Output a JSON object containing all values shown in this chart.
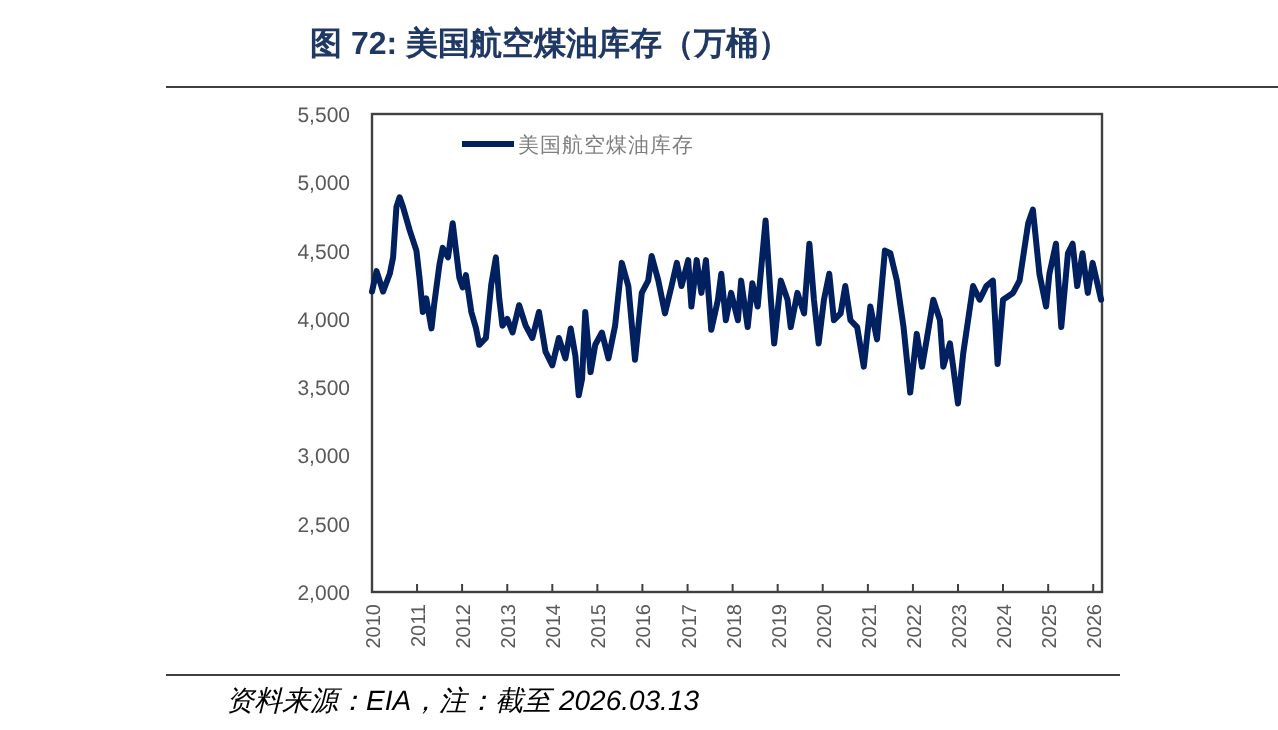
{
  "chart_data": {
    "type": "line",
    "title": "图 72: 美国航空煤油库存（万桶）",
    "annotations": [
      "资料来源：EIA，注：截至 2026.03.13"
    ],
    "xlim": [
      "2010-01-01",
      "2026-03-13"
    ],
    "xticks": [
      "2010",
      "2011",
      "2012",
      "2013",
      "2014",
      "2015",
      "2016",
      "2017",
      "2018",
      "2019",
      "2020",
      "2021",
      "2022",
      "2023",
      "2024",
      "2025",
      "2026"
    ],
    "ylim": [
      2000,
      5500
    ],
    "yticks": [
      {
        "value": 2000,
        "label": "2,000"
      },
      {
        "value": 2500,
        "label": "2,500"
      },
      {
        "value": 3000,
        "label": "3,000"
      },
      {
        "value": 3500,
        "label": "3,500"
      },
      {
        "value": 4000,
        "label": "4,000"
      },
      {
        "value": 4500,
        "label": "4,500"
      },
      {
        "value": 5000,
        "label": "5,000"
      },
      {
        "value": 5500,
        "label": "5,500"
      }
    ],
    "grid": false,
    "legend": "top left",
    "marker": "none",
    "line_style": "solid",
    "x": [
      "2010-01-01",
      "2010-02-07",
      "2010-04-01",
      "2010-05-25",
      "2010-06-21",
      "2010-07-18",
      "2010-08-13",
      "2010-09-09",
      "2010-11-02",
      "2010-12-27",
      "2011-01-21",
      "2011-02-17",
      "2011-03-16",
      "2011-04-28",
      "2011-05-19",
      "2011-07-02",
      "2011-07-28",
      "2011-09-09",
      "2011-10-17",
      "2011-11-13",
      "2011-12-10",
      "2012-01-06",
      "2012-02-01",
      "2012-03-16",
      "2012-04-23",
      "2012-05-19",
      "2012-07-12",
      "2012-08-24",
      "2012-10-01",
      "2012-10-28",
      "2012-11-23",
      "2013-01-01",
      "2013-02-13",
      "2013-04-07",
      "2013-05-30",
      "2013-07-23",
      "2013-09-15",
      "2013-11-07",
      "2014-01-01",
      "2014-02-23",
      "2014-04-17",
      "2014-05-30",
      "2014-07-07",
      "2014-08-03",
      "2014-08-30",
      "2014-09-25",
      "2014-11-07",
      "2014-12-15",
      "2015-02-07",
      "2015-04-01",
      "2015-05-25",
      "2015-07-18",
      "2015-09-09",
      "2015-11-02",
      "2015-12-27",
      "2016-02-17",
      "2016-03-16",
      "2016-05-09",
      "2016-07-02",
      "2016-08-24",
      "2016-10-06",
      "2016-11-13",
      "2017-01-06",
      "2017-02-01",
      "2017-03-16",
      "2017-04-23",
      "2017-05-30",
      "2017-07-12",
      "2017-09-04",
      "2017-10-01",
      "2017-11-07",
      "2017-12-20",
      "2018-02-13",
      "2018-03-11",
      "2018-05-03",
      "2018-06-10",
      "2018-07-23",
      "2018-09-25",
      "2018-11-07",
      "2018-12-04",
      "2019-01-27",
      "2019-03-22",
      "2019-04-17",
      "2019-06-10",
      "2019-08-03",
      "2019-09-15",
      "2019-10-22",
      "2019-11-29",
      "2020-01-11",
      "2020-02-23",
      "2020-04-01",
      "2020-05-25",
      "2020-07-02",
      "2020-08-13",
      "2020-10-06",
      "2020-11-29",
      "2021-01-21",
      "2021-03-16",
      "2021-05-19",
      "2021-07-02",
      "2021-08-24",
      "2021-10-17",
      "2021-12-10",
      "2022-02-01",
      "2022-03-16",
      "2022-04-23",
      "2022-06-15",
      "2022-08-08",
      "2022-09-04",
      "2022-10-28",
      "2022-11-23",
      "2023-01-01",
      "2023-02-13",
      "2023-05-03",
      "2023-06-26",
      "2023-08-19",
      "2023-10-11",
      "2023-11-18",
      "2024-01-01",
      "2024-03-22",
      "2024-05-14",
      "2024-07-23",
      "2024-08-30",
      "2024-10-22",
      "2024-12-15",
      "2025-01-11",
      "2025-03-05",
      "2025-04-17",
      "2025-06-10",
      "2025-07-18",
      "2025-08-24",
      "2025-10-06",
      "2025-11-18",
      "2025-12-27",
      "2026-03-06"
    ],
    "series": [
      {
        "name": "美国航空煤油库存",
        "color": "#002060",
        "values": [
          4200,
          4350,
          4200,
          4330,
          4450,
          4820,
          4890,
          4820,
          4650,
          4500,
          4300,
          4050,
          4150,
          3930,
          4100,
          4400,
          4520,
          4450,
          4700,
          4500,
          4300,
          4230,
          4320,
          4050,
          3930,
          3810,
          3860,
          4250,
          4450,
          4150,
          3950,
          4000,
          3900,
          4100,
          3950,
          3860,
          4050,
          3760,
          3660,
          3860,
          3710,
          3930,
          3730,
          3440,
          3560,
          4050,
          3610,
          3810,
          3900,
          3710,
          3950,
          4410,
          4240,
          3700,
          4190,
          4280,
          4460,
          4280,
          4040,
          4240,
          4410,
          4240,
          4430,
          4090,
          4430,
          4190,
          4430,
          3920,
          4140,
          4330,
          3990,
          4190,
          3990,
          4280,
          3940,
          4260,
          4090,
          4720,
          4140,
          3820,
          4280,
          4140,
          3940,
          4190,
          4040,
          4550,
          4140,
          3820,
          4140,
          4330,
          3990,
          4040,
          4240,
          3990,
          3940,
          3650,
          4090,
          3850,
          4500,
          4480,
          4280,
          3940,
          3460,
          3890,
          3650,
          3850,
          4140,
          3990,
          3650,
          3820,
          3650,
          3380,
          3750,
          4240,
          4140,
          4240,
          4280,
          3670,
          4140,
          4190,
          4280,
          4700,
          4800,
          4330,
          4090,
          4330,
          4550,
          3940,
          4480,
          4550,
          4240,
          4480,
          4190,
          4410,
          4140
        ]
      }
    ]
  }
}
